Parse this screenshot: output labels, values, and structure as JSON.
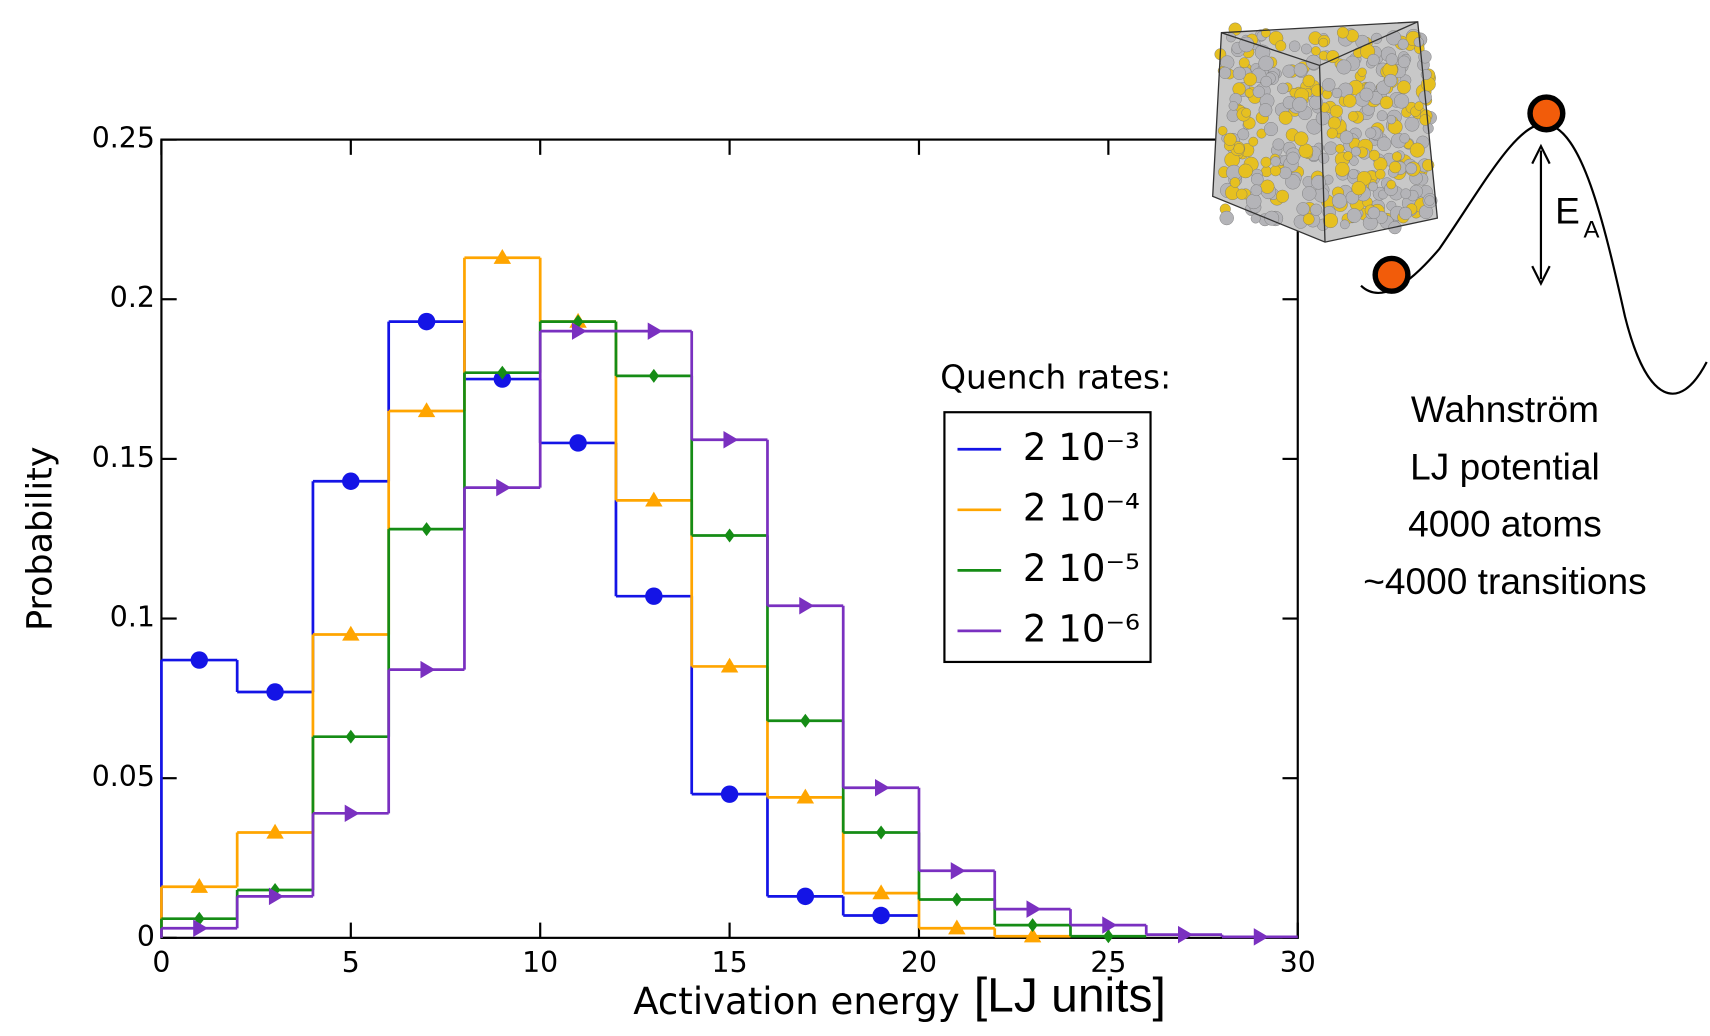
{
  "chart_data": {
    "type": "histogram",
    "xlabel": "Activation energy",
    "xlabel_units": "[LJ units]",
    "ylabel": "Probability",
    "legend_title": "Quench rates:",
    "bins": [
      0,
      2,
      4,
      6,
      8,
      10,
      12,
      14,
      16,
      18,
      20,
      22,
      24,
      26,
      28,
      30
    ],
    "series": [
      {
        "name": "2 10⁻³",
        "color": "#1414e6",
        "marker": "circle",
        "values": [
          0.087,
          0.077,
          0.143,
          0.193,
          0.175,
          0.155,
          0.107,
          0.045,
          0.013,
          0.007,
          null,
          null,
          null,
          null,
          null
        ]
      },
      {
        "name": "2 10⁻⁴",
        "color": "#ffa500",
        "marker": "triangle",
        "values": [
          0.016,
          0.033,
          0.095,
          0.165,
          0.213,
          0.193,
          0.137,
          0.085,
          0.044,
          0.014,
          0.003,
          0.0005,
          null,
          null,
          null
        ]
      },
      {
        "name": "2 10⁻⁵",
        "color": "#158c15",
        "marker": "diamond",
        "values": [
          0.006,
          0.015,
          0.063,
          0.128,
          0.177,
          0.193,
          0.176,
          0.126,
          0.068,
          0.033,
          0.012,
          0.004,
          0.0005,
          null,
          null
        ]
      },
      {
        "name": "2 10⁻⁶",
        "color": "#7a30c0",
        "marker": "right-triangle",
        "values": [
          0.003,
          0.013,
          0.039,
          0.084,
          0.141,
          0.19,
          0.19,
          0.156,
          0.104,
          0.047,
          0.021,
          0.009,
          0.004,
          0.001,
          0.0003
        ]
      }
    ],
    "xlim": [
      0,
      30
    ],
    "xticks": [
      0,
      5,
      10,
      15,
      20,
      25,
      30
    ],
    "ylim": [
      0,
      0.25
    ],
    "yticks": [
      0,
      0.05,
      0.1,
      0.15,
      0.2,
      0.25
    ],
    "annotations": {
      "energy_symbol": "E",
      "energy_subscript": "A",
      "notes": [
        "Wahnström",
        "LJ potential",
        "4000 atoms",
        "~4000 transitions"
      ]
    }
  }
}
